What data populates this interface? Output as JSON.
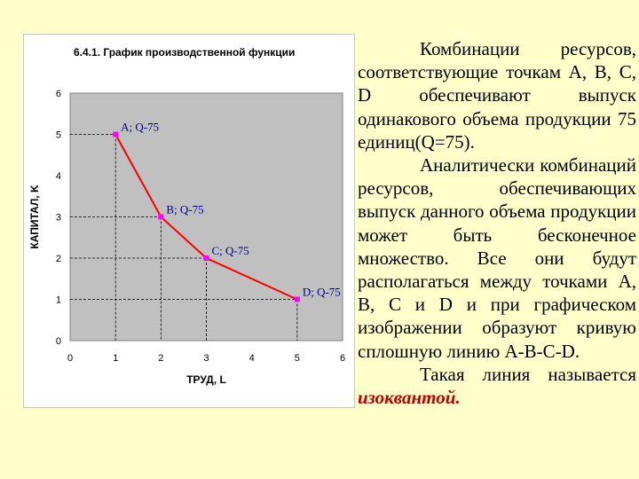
{
  "colors": {
    "page_bg": "#ffffcc",
    "plot_bg": "#c0c0c0",
    "curve": "#ff0000",
    "point": "#ff00ff",
    "label": "#000080",
    "term": "#c00000"
  },
  "chart_data": {
    "type": "line",
    "title": "6.4.1. График производственной функции",
    "xlabel": "ТРУД, L",
    "ylabel": "КАПИТАЛ, K",
    "xlim": [
      0,
      6
    ],
    "ylim": [
      0,
      6
    ],
    "xticks": [
      "0",
      "1",
      "2",
      "3",
      "4",
      "5",
      "6"
    ],
    "yticks": [
      "0",
      "1",
      "2",
      "3",
      "4",
      "5",
      "6"
    ],
    "grid": false,
    "guide_lines": "dashed",
    "points": [
      {
        "label": "A; Q-75",
        "x": 1,
        "y": 5
      },
      {
        "label": "B; Q-75",
        "x": 2,
        "y": 3
      },
      {
        "label": "C; Q-75",
        "x": 3,
        "y": 2
      },
      {
        "label": "D; Q-75",
        "x": 5,
        "y": 1
      }
    ]
  },
  "text": {
    "p1": "Комбинации ресурсов, соответствующие точкам A, B, C, D обеспечивают выпуск одинакового объема продукции 75 единиц(Q=75).",
    "p2": "Аналитически комбинаций ресурсов, обеспечивающих выпуск данного объема продукции может быть бесконечное множество. Все они будут располагаться между точками A, B, C и D и при графическом изображении образуют кривую сплошную линию A-B-C-D.",
    "p3_text": "Такая линия называется",
    "p3_term": "изоквантой."
  }
}
